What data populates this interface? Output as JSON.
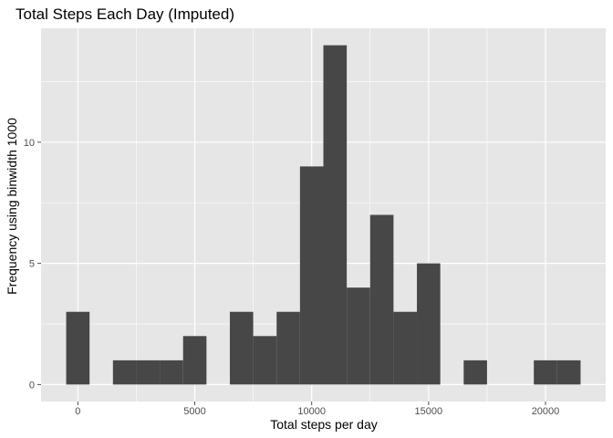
{
  "chart_data": {
    "type": "bar",
    "title": "Total Steps Each Day (Imputed)",
    "xlabel": "Total steps per day",
    "ylabel": "Frequency using binwidth 1000",
    "binwidth": 1000,
    "bins": [
      {
        "x": 0,
        "count": 3
      },
      {
        "x": 1000,
        "count": 0
      },
      {
        "x": 2000,
        "count": 1
      },
      {
        "x": 3000,
        "count": 1
      },
      {
        "x": 4000,
        "count": 1
      },
      {
        "x": 5000,
        "count": 2
      },
      {
        "x": 6000,
        "count": 0
      },
      {
        "x": 7000,
        "count": 3
      },
      {
        "x": 8000,
        "count": 2
      },
      {
        "x": 9000,
        "count": 3
      },
      {
        "x": 10000,
        "count": 9
      },
      {
        "x": 11000,
        "count": 14
      },
      {
        "x": 12000,
        "count": 4
      },
      {
        "x": 13000,
        "count": 7
      },
      {
        "x": 14000,
        "count": 3
      },
      {
        "x": 15000,
        "count": 5
      },
      {
        "x": 16000,
        "count": 0
      },
      {
        "x": 17000,
        "count": 1
      },
      {
        "x": 18000,
        "count": 0
      },
      {
        "x": 19000,
        "count": 0
      },
      {
        "x": 20000,
        "count": 1
      },
      {
        "x": 21000,
        "count": 1
      }
    ],
    "xlim": [
      -1575,
      22575
    ],
    "ylim": [
      -0.7,
      14.7
    ],
    "x_ticks": [
      0,
      5000,
      10000,
      15000,
      20000
    ],
    "y_ticks": [
      0,
      5,
      10
    ],
    "grid": true,
    "colors": {
      "panel": "#e6e6e6",
      "grid_major": "#ffffff",
      "bar": "#474747",
      "tick": "#4d4d4d"
    }
  }
}
